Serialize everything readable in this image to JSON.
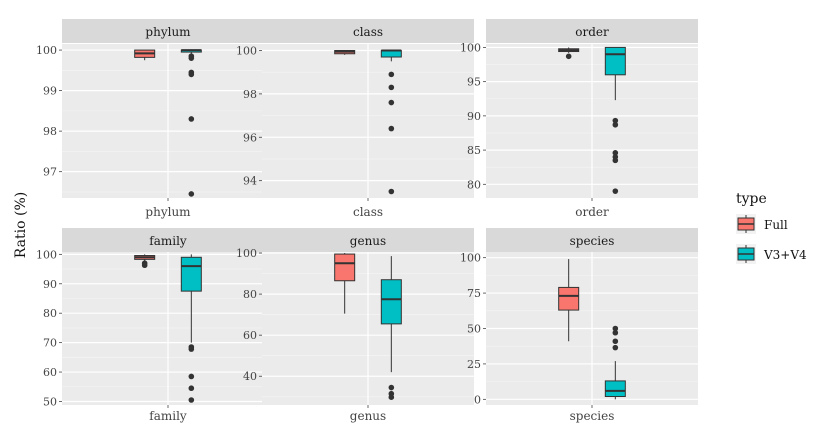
{
  "chart_data": {
    "type": "boxplot",
    "ylabel": "Ratio (%)",
    "grid": true,
    "legend": {
      "title": "type",
      "position": "right",
      "entries": [
        {
          "label": "Full",
          "color": "#F8766D"
        },
        {
          "label": "V3+V4",
          "color": "#00BFC4"
        }
      ]
    },
    "panels": [
      {
        "title": "phylum",
        "category": "phylum",
        "ylim": [
          96.35,
          100.15
        ],
        "yticks": [
          97,
          98,
          99,
          100
        ],
        "ytick_labels": [
          "97",
          "98",
          "99",
          "100"
        ],
        "series": [
          {
            "name": "Full",
            "min": 99.75,
            "q1": 99.82,
            "median": 99.92,
            "q3": 100.0,
            "max": 100.0,
            "outliers": []
          },
          {
            "name": "V3+V4",
            "min": 99.9,
            "q1": 99.97,
            "median": 100.0,
            "q3": 100.0,
            "max": 100.0,
            "outliers": [
              99.85,
              99.8,
              99.45,
              99.4,
              98.3,
              96.45
            ]
          }
        ]
      },
      {
        "title": "class",
        "category": "class",
        "ylim": [
          93.2,
          100.3
        ],
        "yticks": [
          94,
          96,
          98,
          100
        ],
        "ytick_labels": [
          "94",
          "96",
          "98",
          "100"
        ],
        "series": [
          {
            "name": "Full",
            "min": 99.8,
            "q1": 99.85,
            "median": 99.95,
            "q3": 100.0,
            "max": 100.0,
            "outliers": []
          },
          {
            "name": "V3+V4",
            "min": 99.5,
            "q1": 99.7,
            "median": 100.0,
            "q3": 100.0,
            "max": 100.0,
            "outliers": [
              98.9,
              98.3,
              97.6,
              96.4,
              93.5
            ]
          }
        ]
      },
      {
        "title": "order",
        "category": "order",
        "ylim": [
          78.0,
          100.5
        ],
        "yticks": [
          80,
          85,
          90,
          95,
          100
        ],
        "ytick_labels": [
          "80",
          "85",
          "90",
          "95",
          "100"
        ],
        "series": [
          {
            "name": "Full",
            "min": 99.2,
            "q1": 99.4,
            "median": 99.6,
            "q3": 99.8,
            "max": 100.0,
            "outliers": [
              98.7
            ]
          },
          {
            "name": "V3+V4",
            "min": 92.3,
            "q1": 96.0,
            "median": 99.0,
            "q3": 100.0,
            "max": 100.0,
            "outliers": [
              89.3,
              88.7,
              84.6,
              84.0,
              83.5,
              79.0
            ]
          }
        ]
      },
      {
        "title": "family",
        "category": "family",
        "ylim": [
          48.8,
          100.8
        ],
        "yticks": [
          50,
          60,
          70,
          80,
          90,
          100
        ],
        "ytick_labels": [
          "50",
          "60",
          "70",
          "80",
          "90",
          "100"
        ],
        "series": [
          {
            "name": "Full",
            "min": 97.8,
            "q1": 98.3,
            "median": 99.0,
            "q3": 99.6,
            "max": 100.0,
            "outliers": [
              97.0,
              96.3
            ]
          },
          {
            "name": "V3+V4",
            "min": 70.0,
            "q1": 87.5,
            "median": 96.0,
            "q3": 99.0,
            "max": 100.0,
            "outliers": [
              68.5,
              67.8,
              58.5,
              54.5,
              50.5
            ]
          }
        ]
      },
      {
        "title": "genus",
        "category": "genus",
        "ylim": [
          26.0,
          100.5
        ],
        "yticks": [
          40,
          60,
          80,
          100
        ],
        "ytick_labels": [
          "40",
          "60",
          "80",
          "100"
        ],
        "series": [
          {
            "name": "Full",
            "min": 70.5,
            "q1": 86.5,
            "median": 95.0,
            "q3": 99.5,
            "max": 100.0,
            "outliers": []
          },
          {
            "name": "V3+V4",
            "min": 42.0,
            "q1": 65.5,
            "median": 77.5,
            "q3": 87.0,
            "max": 98.5,
            "outliers": [
              34.5,
              31.5,
              29.8
            ]
          }
        ]
      },
      {
        "title": "species",
        "category": "species",
        "ylim": [
          -4.0,
          104.0
        ],
        "yticks": [
          0,
          25,
          50,
          75,
          100
        ],
        "ytick_labels": [
          "0",
          "25",
          "50",
          "75",
          "100"
        ],
        "series": [
          {
            "name": "Full",
            "min": 41.0,
            "q1": 63.0,
            "median": 73.0,
            "q3": 79.0,
            "max": 99.0,
            "outliers": []
          },
          {
            "name": "V3+V4",
            "min": 0.0,
            "q1": 2.0,
            "median": 6.0,
            "q3": 13.0,
            "max": 27.0,
            "outliers": [
              50.0,
              47.0,
              41.0,
              36.5
            ]
          }
        ]
      }
    ]
  }
}
